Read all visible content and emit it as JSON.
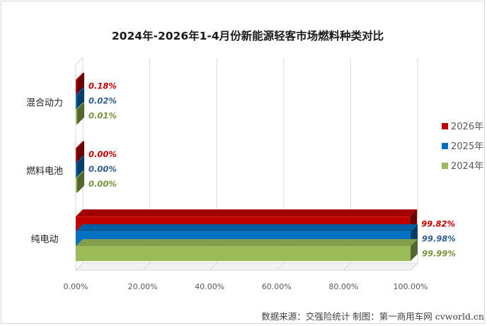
{
  "chart_data": {
    "type": "bar",
    "orientation": "horizontal",
    "title": "2024年-2026年1-4月份新能源轻客市场燃料种类对比",
    "categories": [
      "混合动力",
      "燃料电池",
      "纯电动"
    ],
    "series": [
      {
        "name": "2026年",
        "color": "#c00000",
        "values": [
          0.18,
          0.0,
          99.82
        ],
        "labels": [
          "0.18%",
          "0.00%",
          "99.82%"
        ]
      },
      {
        "name": "2025年",
        "color": "#0070c0",
        "values": [
          0.02,
          0.0,
          99.98
        ],
        "labels": [
          "0.02%",
          "0.00%",
          "99.98%"
        ]
      },
      {
        "name": "2024年",
        "color": "#9bbb59",
        "values": [
          0.01,
          0.0,
          99.99
        ],
        "labels": [
          "0.01%",
          "0.00%",
          "99.99%"
        ]
      }
    ],
    "label_colors": [
      "#c00000",
      "#2e5f8f",
      "#76923c"
    ],
    "x_ticks": [
      "0.00%",
      "20.00%",
      "40.00%",
      "60.00%",
      "80.00%",
      "100.00%"
    ],
    "xlim": [
      0,
      100
    ],
    "grid": true,
    "legend_position": "right",
    "source": "数据来源：交强险统计  制图：第一商用车网 cvworld.cn"
  }
}
